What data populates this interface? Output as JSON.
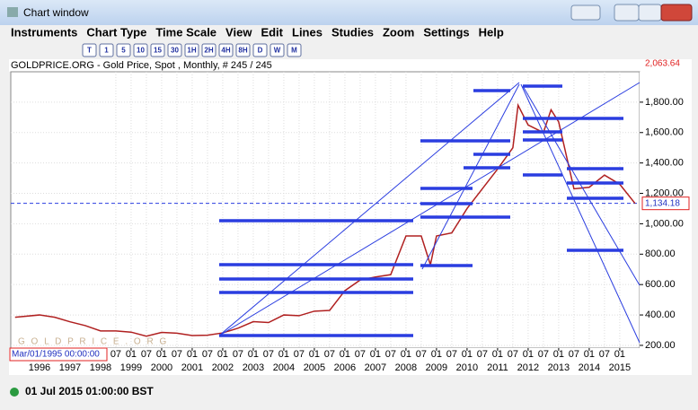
{
  "window": {
    "title": "Chart window"
  },
  "menu": [
    "Instruments",
    "Chart Type",
    "Time Scale",
    "View",
    "Edit",
    "Lines",
    "Studies",
    "Zoom",
    "Settings",
    "Help"
  ],
  "toolbar": [
    "T",
    "1",
    "5",
    "10",
    "15",
    "30",
    "1H",
    "2H",
    "4H",
    "8H",
    "D",
    "W",
    "M"
  ],
  "status": "01 Jul 2015 01:00:00 BST",
  "chart_data": {
    "type": "line",
    "title": "GOLDPRICE.ORG - Gold Price, Spot , Monthly, # 245 / 245",
    "watermark": "G O L D P R I C E . O R G",
    "cursor_label": "Mar/01/1995 00:00:00",
    "top_label": {
      "value": 2063.64,
      "label": "2,063.64"
    },
    "current_price": {
      "value": 1134.18,
      "label": "1,134.18"
    },
    "series": [
      {
        "name": "Gold Price",
        "color": "#b02020",
        "x": [
          1995.2,
          1996.0,
          1996.5,
          1997.0,
          1997.5,
          1998.0,
          1998.5,
          1999.0,
          1999.5,
          2000.0,
          2000.5,
          2001.0,
          2001.5,
          2002.0,
          2002.5,
          2003.0,
          2003.5,
          2004.0,
          2004.5,
          2005.0,
          2005.5,
          2006.0,
          2006.5,
          2007.0,
          2007.5,
          2008.0,
          2008.5,
          2008.8,
          2009.0,
          2009.5,
          2010.0,
          2010.5,
          2011.0,
          2011.5,
          2011.67,
          2012.0,
          2012.5,
          2012.75,
          2013.0,
          2013.5,
          2014.0,
          2014.5,
          2015.0,
          2015.5
        ],
        "values": [
          385,
          400,
          385,
          355,
          330,
          295,
          295,
          287,
          260,
          285,
          280,
          265,
          267,
          282,
          313,
          356,
          350,
          400,
          395,
          425,
          430,
          560,
          630,
          650,
          665,
          920,
          920,
          730,
          920,
          940,
          1100,
          1230,
          1360,
          1500,
          1780,
          1650,
          1600,
          1750,
          1670,
          1230,
          1240,
          1320,
          1260,
          1134
        ]
      }
    ],
    "xlim": [
      1995.06,
      2015.65
    ],
    "ylim": [
      182,
      2000
    ],
    "xticks": [
      1996,
      1997,
      1998,
      1999,
      2000,
      2001,
      2002,
      2003,
      2004,
      2005,
      2006,
      2007,
      2008,
      2009,
      2010,
      2011,
      2012,
      2013,
      2014,
      2015
    ],
    "xticks_minor": [
      {
        "value": 1998.5,
        "label": "07"
      },
      {
        "value": 1999.0,
        "label": "01"
      },
      {
        "value": 1999.5,
        "label": "07"
      },
      {
        "value": 2000.0,
        "label": "01"
      },
      {
        "value": 2000.5,
        "label": "07"
      },
      {
        "value": 2001.0,
        "label": "01"
      },
      {
        "value": 2001.5,
        "label": "07"
      },
      {
        "value": 2002.0,
        "label": "01"
      },
      {
        "value": 2002.5,
        "label": "07"
      },
      {
        "value": 2003.0,
        "label": "01"
      },
      {
        "value": 2003.5,
        "label": "07"
      },
      {
        "value": 2004.0,
        "label": "01"
      },
      {
        "value": 2004.5,
        "label": "07"
      },
      {
        "value": 2005.0,
        "label": "01"
      },
      {
        "value": 2005.5,
        "label": "07"
      },
      {
        "value": 2006.0,
        "label": "01"
      },
      {
        "value": 2006.5,
        "label": "07"
      },
      {
        "value": 2007.0,
        "label": "01"
      },
      {
        "value": 2007.5,
        "label": "07"
      },
      {
        "value": 2008.0,
        "label": "01"
      },
      {
        "value": 2008.5,
        "label": "07"
      },
      {
        "value": 2009.0,
        "label": "01"
      },
      {
        "value": 2009.5,
        "label": "07"
      },
      {
        "value": 2010.0,
        "label": "01"
      },
      {
        "value": 2010.5,
        "label": "07"
      },
      {
        "value": 2011.0,
        "label": "01"
      },
      {
        "value": 2011.5,
        "label": "07"
      },
      {
        "value": 2012.0,
        "label": "01"
      },
      {
        "value": 2012.5,
        "label": "07"
      },
      {
        "value": 2013.0,
        "label": "01"
      },
      {
        "value": 2013.5,
        "label": "07"
      },
      {
        "value": 2014.0,
        "label": "01"
      },
      {
        "value": 2014.5,
        "label": "07"
      },
      {
        "value": 2015.0,
        "label": "01"
      }
    ],
    "yticks": [
      {
        "value": 200,
        "label": "200.00"
      },
      {
        "value": 400,
        "label": "400.00"
      },
      {
        "value": 600,
        "label": "600.00"
      },
      {
        "value": 800,
        "label": "800.00"
      },
      {
        "value": 1000,
        "label": "1,000.00"
      },
      {
        "value": 1200,
        "label": "1,200.00"
      },
      {
        "value": 1400,
        "label": "1,400.00"
      },
      {
        "value": 1600,
        "label": "1,600.00"
      },
      {
        "value": 1800,
        "label": "1,800.00"
      }
    ],
    "grid": true
  }
}
